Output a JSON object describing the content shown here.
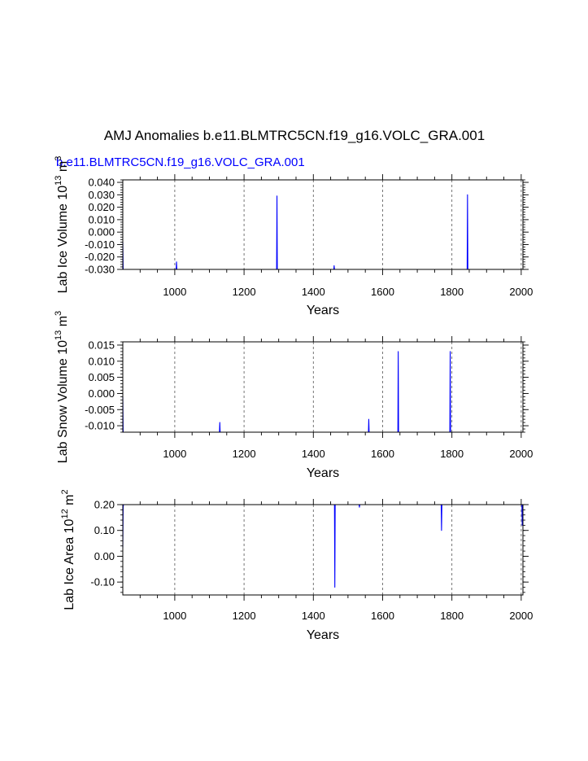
{
  "page_title": "AMJ Anomalies b.e11.BLMTRC5CN.f19_g16.VOLC_GRA.001",
  "chart_data": [
    {
      "type": "line",
      "subtitle": "b.e11.BLMTRC5CN.f19_g16.VOLC_GRA.001",
      "series_color": "#0000ff",
      "xlabel": "Years",
      "ylabel": "Lab Ice Volume 10",
      "ylabel_exponent": "13",
      "ylabel_units": "m",
      "ylabel_units_exponent": "3",
      "xlim": [
        850,
        2005
      ],
      "ylim": [
        -0.03,
        0.042
      ],
      "x_ticks": [
        "1000",
        "1200",
        "1400",
        "1600",
        "1800",
        "2000"
      ],
      "y_ticks": [
        "-0.030",
        "-0.020",
        "-0.010",
        "0.000",
        "0.010",
        "0.020",
        "0.030",
        "0.040"
      ],
      "grid": "vertical-dashed",
      "series": [
        {
          "name": "Lab Ice Volume",
          "x_start": 850,
          "x_end": 2005,
          "amplitude": 0.007,
          "extremes": [
            [
              1295,
              0.029
            ],
            [
              1460,
              -0.027
            ],
            [
              1845,
              0.03
            ],
            [
              1005,
              -0.024
            ]
          ]
        }
      ]
    },
    {
      "type": "line",
      "series_color": "#0000ff",
      "xlabel": "Years",
      "ylabel": "Lab Snow Volume 10",
      "ylabel_exponent": "13",
      "ylabel_units": "m",
      "ylabel_units_exponent": "3",
      "xlim": [
        850,
        2005
      ],
      "ylim": [
        -0.012,
        0.016
      ],
      "x_ticks": [
        "1000",
        "1200",
        "1400",
        "1600",
        "1800",
        "2000"
      ],
      "y_ticks": [
        "-0.010",
        "-0.005",
        "0.000",
        "0.005",
        "0.010",
        "0.015"
      ],
      "grid": "vertical-dashed",
      "series": [
        {
          "name": "Lab Snow Volume",
          "x_start": 850,
          "x_end": 2005,
          "amplitude": 0.003,
          "extremes": [
            [
              1645,
              0.013
            ],
            [
              1795,
              0.013
            ],
            [
              1130,
              -0.009
            ],
            [
              1560,
              -0.008
            ]
          ]
        }
      ]
    },
    {
      "type": "line",
      "series_color": "#0000ff",
      "xlabel": "Years",
      "ylabel": "Lab Ice Area 10",
      "ylabel_exponent": "12",
      "ylabel_units": "m",
      "ylabel_units_exponent": "2",
      "xlim": [
        850,
        2005
      ],
      "ylim": [
        -0.15,
        0.2
      ],
      "x_ticks": [
        "1000",
        "1200",
        "1400",
        "1600",
        "1800",
        "2000"
      ],
      "y_ticks": [
        "-0.10",
        "0.00",
        "0.10",
        "0.20"
      ],
      "grid": "vertical-dashed",
      "series": [
        {
          "name": "Lab Ice Area",
          "x_start": 850,
          "x_end": 2005,
          "amplitude": 0.028,
          "extremes": [
            [
              1533,
              0.19
            ],
            [
              2003,
              0.12
            ],
            [
              1462,
              -0.12
            ],
            [
              1770,
              0.1
            ]
          ]
        }
      ]
    }
  ]
}
